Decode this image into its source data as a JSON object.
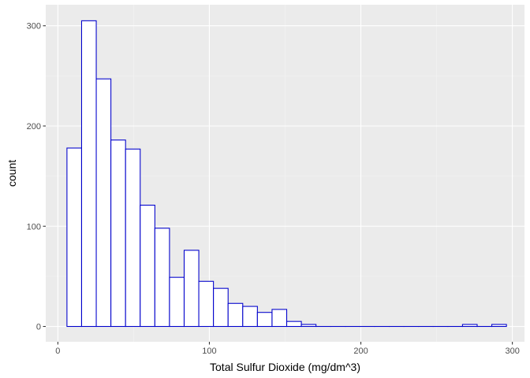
{
  "chart_data": {
    "type": "bar",
    "subtype": "histogram",
    "title": "",
    "xlabel": "Total Sulfur Dioxide (mg/dm^3)",
    "ylabel": "count",
    "xlim": [
      -8,
      308
    ],
    "ylim": [
      -15.3,
      321
    ],
    "x_ticks": [
      0,
      100,
      200,
      300
    ],
    "y_ticks": [
      0,
      100,
      200,
      300
    ],
    "bin_width": 9.67,
    "bins": [
      {
        "start": 6.0,
        "count": 178
      },
      {
        "start": 15.67,
        "count": 305
      },
      {
        "start": 25.34,
        "count": 247
      },
      {
        "start": 35.01,
        "count": 186
      },
      {
        "start": 44.68,
        "count": 177
      },
      {
        "start": 54.35,
        "count": 121
      },
      {
        "start": 64.02,
        "count": 98
      },
      {
        "start": 73.69,
        "count": 49
      },
      {
        "start": 83.36,
        "count": 76
      },
      {
        "start": 93.03,
        "count": 45
      },
      {
        "start": 102.7,
        "count": 38
      },
      {
        "start": 112.37,
        "count": 23
      },
      {
        "start": 122.04,
        "count": 20
      },
      {
        "start": 131.71,
        "count": 14
      },
      {
        "start": 141.38,
        "count": 17
      },
      {
        "start": 151.05,
        "count": 5
      },
      {
        "start": 160.72,
        "count": 2
      },
      {
        "start": 170.39,
        "count": 0
      },
      {
        "start": 180.06,
        "count": 0
      },
      {
        "start": 189.73,
        "count": 0
      },
      {
        "start": 199.4,
        "count": 0
      },
      {
        "start": 209.07,
        "count": 0
      },
      {
        "start": 218.74,
        "count": 0
      },
      {
        "start": 228.41,
        "count": 0
      },
      {
        "start": 238.08,
        "count": 0
      },
      {
        "start": 247.75,
        "count": 0
      },
      {
        "start": 257.42,
        "count": 0
      },
      {
        "start": 267.09,
        "count": 2
      },
      {
        "start": 276.76,
        "count": 0
      },
      {
        "start": 286.43,
        "count": 2
      }
    ],
    "grid": true,
    "colors": {
      "panel_background": "#ebebeb",
      "grid_major": "#ffffff",
      "grid_minor": "#f5f5f5",
      "bar_fill": "#ffffff",
      "bar_outline": "#0000cc",
      "tick_text": "#4d4d4d",
      "tick_mark": "#333333"
    }
  }
}
